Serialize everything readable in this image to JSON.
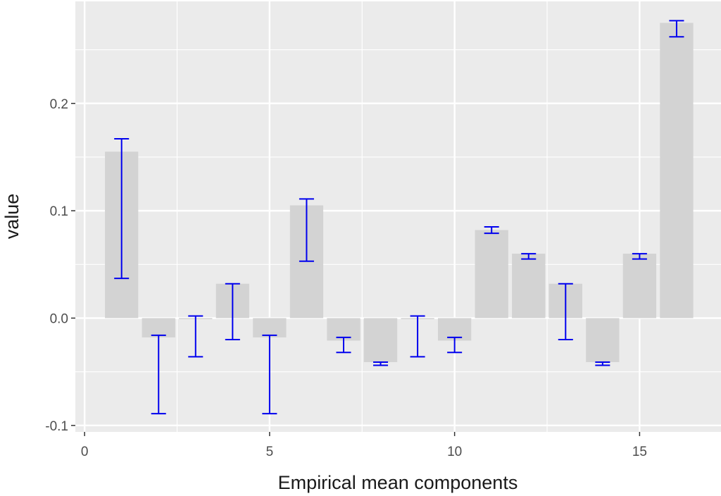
{
  "chart_data": {
    "type": "bar",
    "title": "",
    "xlabel": "Empirical mean components",
    "ylabel": "value",
    "xlim": [
      -0.25,
      17.2
    ],
    "ylim": [
      -0.106,
      0.295
    ],
    "grid": true,
    "x_ticks": [
      0,
      5,
      10,
      15
    ],
    "x_tick_labels": [
      "0",
      "5",
      "10",
      "15"
    ],
    "y_ticks": [
      -0.1,
      0.0,
      0.1,
      0.2
    ],
    "y_tick_labels": [
      "-0.1",
      "0.0",
      "0.1",
      "0.2"
    ],
    "x": [
      1,
      2,
      3,
      4,
      5,
      6,
      7,
      8,
      9,
      10,
      11,
      12,
      13,
      14,
      15,
      16
    ],
    "values": [
      0.155,
      -0.018,
      -0.001,
      0.032,
      -0.018,
      0.105,
      -0.021,
      -0.041,
      -0.001,
      -0.021,
      0.082,
      0.06,
      0.032,
      -0.041,
      0.06,
      0.275
    ],
    "error_lower": [
      0.037,
      -0.089,
      -0.036,
      -0.02,
      -0.089,
      0.053,
      -0.032,
      -0.044,
      -0.036,
      -0.032,
      0.079,
      0.055,
      -0.02,
      -0.044,
      0.055,
      0.262
    ],
    "error_upper": [
      0.167,
      -0.016,
      0.002,
      0.032,
      -0.016,
      0.111,
      -0.018,
      -0.041,
      0.002,
      -0.018,
      0.085,
      0.06,
      0.032,
      -0.041,
      0.06,
      0.277
    ],
    "colors": {
      "panel": "#ebebeb",
      "grid": "#ffffff",
      "bar": "#d3d3d3",
      "errorbar": "#0000ee"
    }
  }
}
